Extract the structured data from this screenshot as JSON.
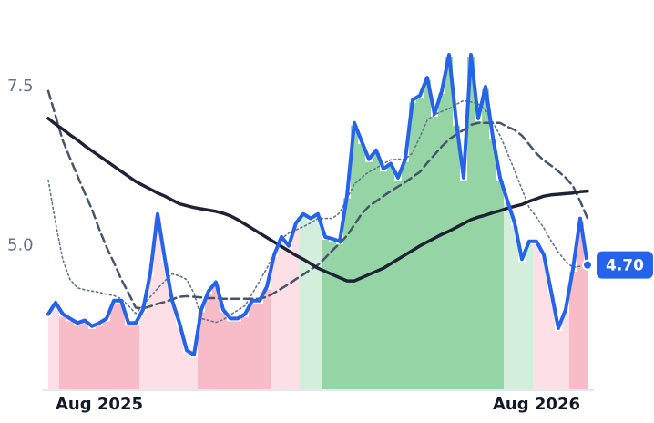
{
  "chart_data": {
    "type": "line",
    "categories": [
      null,
      null,
      null,
      null,
      null,
      null,
      null,
      "Aug 2025",
      null,
      null,
      null,
      null,
      null,
      null,
      null,
      null,
      null,
      null,
      null,
      null,
      null,
      null,
      null,
      null,
      null,
      null,
      null,
      null,
      null,
      null,
      null,
      null,
      null,
      null,
      null,
      null,
      null,
      null,
      null,
      null,
      null,
      null,
      null,
      null,
      null,
      null,
      null,
      null,
      null,
      null,
      null,
      null,
      null,
      null,
      null,
      null,
      null,
      null,
      null,
      null,
      null,
      null,
      null,
      null,
      null,
      null,
      null,
      "Aug 2026",
      null,
      null,
      null,
      null,
      null,
      null,
      null
    ],
    "ylim": [
      2.75,
      8.5
    ],
    "yticks": [
      {
        "value": 5,
        "label": "5.0"
      },
      {
        "value": 7.5,
        "label": "7.5"
      }
    ],
    "band_colors": [
      "#fde0e6",
      "#fde0e6",
      "#f8bcc8",
      "#f8bcc8",
      "#f8bcc8",
      "#f8bcc8",
      "#f8bcc8",
      "#f8bcc8",
      "#f8bcc8",
      "#f8bcc8",
      "#f8bcc8",
      "#f8bcc8",
      "#f8bcc8",
      "#fde0e6",
      "#fde0e6",
      "#fde0e6",
      "#fde0e6",
      "#fde0e6",
      "#fde0e6",
      "#fde0e6",
      "#fde0e6",
      "#f8bcc8",
      "#f8bcc8",
      "#f8bcc8",
      "#f8bcc8",
      "#f8bcc8",
      "#f8bcc8",
      "#f8bcc8",
      "#f8bcc8",
      "#f8bcc8",
      "#f8bcc8",
      "#fde0e6",
      "#fde0e6",
      "#fde0e6",
      "#fde0e6",
      "#d3eedb",
      "#d3eedb",
      "#d3eedb",
      "#95d5a5",
      "#95d5a5",
      "#95d5a5",
      "#95d5a5",
      "#95d5a5",
      "#95d5a5",
      "#95d5a5",
      "#95d5a5",
      "#95d5a5",
      "#95d5a5",
      "#95d5a5",
      "#95d5a5",
      "#95d5a5",
      "#95d5a5",
      "#95d5a5",
      "#95d5a5",
      "#95d5a5",
      "#95d5a5",
      "#95d5a5",
      "#95d5a5",
      "#95d5a5",
      "#95d5a5",
      "#95d5a5",
      "#95d5a5",
      "#95d5a5",
      "#d3eedb",
      "#d3eedb",
      "#d3eedb",
      "#d3eedb",
      "#fde0e6",
      "#fde0e6",
      "#fde0e6",
      "#fde0e6",
      "#fde0e6",
      "#f8bcc8",
      "#f8bcc8",
      "#f8bcc8"
    ],
    "series": [
      {
        "color": "#64748b",
        "dash": "dotted",
        "values": [
          6.03,
          5.36,
          4.78,
          4.47,
          4.34,
          4.31,
          4.29,
          4.27,
          4.24,
          4.22,
          4.17,
          4.06,
          3.94,
          4.06,
          4.2,
          4.33,
          4.45,
          4.56,
          4.53,
          4.47,
          4.26,
          3.86,
          3.83,
          3.8,
          3.84,
          3.92,
          3.99,
          4.06,
          4.25,
          4.45,
          4.65,
          4.88,
          5.11,
          5.2,
          5.25,
          5.3,
          5.36,
          5.43,
          5.43,
          5.43,
          5.52,
          5.74,
          5.97,
          6.07,
          6.16,
          6.22,
          6.29,
          6.35,
          6.36,
          6.36,
          6.46,
          6.71,
          6.97,
          7.06,
          7.11,
          7.15,
          7.22,
          7.28,
          7.26,
          7.23,
          7.13,
          6.94,
          6.73,
          6.46,
          6.18,
          5.89,
          5.6,
          5.45,
          5.28,
          5.08,
          4.9,
          4.76,
          4.66,
          4.68,
          4.71
        ]
      },
      {
        "color": "#475569",
        "dash": "dashed",
        "values": [
          7.43,
          7.04,
          6.65,
          6.37,
          6.1,
          5.83,
          5.57,
          5.26,
          4.98,
          4.74,
          4.48,
          4.26,
          4.03,
          4.02,
          4.05,
          4.09,
          4.12,
          4.16,
          4.2,
          4.21,
          4.2,
          4.19,
          4.18,
          4.18,
          4.17,
          4.17,
          4.17,
          4.17,
          4.17,
          4.17,
          4.2,
          4.26,
          4.33,
          4.4,
          4.48,
          4.55,
          4.63,
          4.7,
          4.81,
          4.93,
          5.04,
          5.16,
          5.33,
          5.5,
          5.62,
          5.7,
          5.78,
          5.86,
          5.93,
          6.0,
          6.08,
          6.16,
          6.3,
          6.43,
          6.56,
          6.67,
          6.75,
          6.82,
          6.9,
          6.93,
          6.93,
          6.93,
          6.93,
          6.87,
          6.82,
          6.73,
          6.59,
          6.45,
          6.34,
          6.26,
          6.17,
          6.07,
          5.94,
          5.7,
          5.43
        ]
      },
      {
        "color": "#1e2235",
        "dash": "solid",
        "values": [
          7.0,
          6.91,
          6.83,
          6.74,
          6.66,
          6.57,
          6.49,
          6.41,
          6.33,
          6.25,
          6.17,
          6.09,
          6.01,
          5.95,
          5.89,
          5.83,
          5.78,
          5.72,
          5.66,
          5.63,
          5.6,
          5.58,
          5.56,
          5.54,
          5.51,
          5.47,
          5.41,
          5.34,
          5.27,
          5.2,
          5.13,
          5.06,
          4.99,
          4.92,
          4.85,
          4.79,
          4.72,
          4.65,
          4.6,
          4.55,
          4.5,
          4.45,
          4.45,
          4.5,
          4.55,
          4.6,
          4.65,
          4.72,
          4.79,
          4.86,
          4.93,
          5.0,
          5.06,
          5.12,
          5.18,
          5.23,
          5.29,
          5.35,
          5.41,
          5.45,
          5.48,
          5.52,
          5.55,
          5.59,
          5.62,
          5.65,
          5.7,
          5.74,
          5.78,
          5.8,
          5.81,
          5.82,
          5.83,
          5.85,
          5.86
        ]
      },
      {
        "color": "#2563eb",
        "dash": "solid",
        "main": true,
        "values": [
          3.93,
          4.11,
          3.93,
          3.86,
          3.79,
          3.83,
          3.74,
          3.79,
          3.86,
          4.14,
          4.14,
          3.79,
          3.79,
          4.0,
          4.57,
          5.5,
          4.79,
          4.14,
          3.79,
          3.36,
          3.29,
          4.0,
          4.29,
          4.43,
          4.0,
          3.86,
          3.86,
          3.93,
          4.14,
          4.14,
          4.36,
          4.86,
          5.14,
          5.0,
          5.36,
          5.5,
          5.43,
          5.5,
          5.14,
          5.11,
          5.07,
          5.79,
          6.93,
          6.64,
          6.36,
          6.5,
          6.21,
          6.29,
          6.07,
          6.36,
          7.29,
          7.36,
          7.64,
          7.07,
          7.43,
          8.0,
          6.93,
          6.07,
          8.0,
          7.0,
          7.5,
          6.71,
          6.07,
          5.71,
          5.36,
          4.79,
          5.07,
          5.07,
          4.86,
          4.29,
          3.71,
          4.0,
          4.64,
          5.43,
          4.7
        ],
        "value_labels": [
          null,
          null,
          null,
          null,
          null,
          null,
          null,
          null,
          null,
          null,
          null,
          null,
          null,
          null,
          null,
          null,
          null,
          null,
          null,
          null,
          null,
          null,
          null,
          null,
          null,
          null,
          null,
          null,
          null,
          null,
          null,
          null,
          null,
          null,
          null,
          null,
          null,
          null,
          null,
          null,
          null,
          null,
          null,
          null,
          null,
          null,
          null,
          null,
          null,
          null,
          null,
          null,
          null,
          null,
          null,
          null,
          null,
          null,
          null,
          null,
          null,
          null,
          null,
          null,
          null,
          null,
          null,
          null,
          null,
          null,
          null,
          null,
          null,
          null,
          "4.70"
        ]
      }
    ]
  }
}
